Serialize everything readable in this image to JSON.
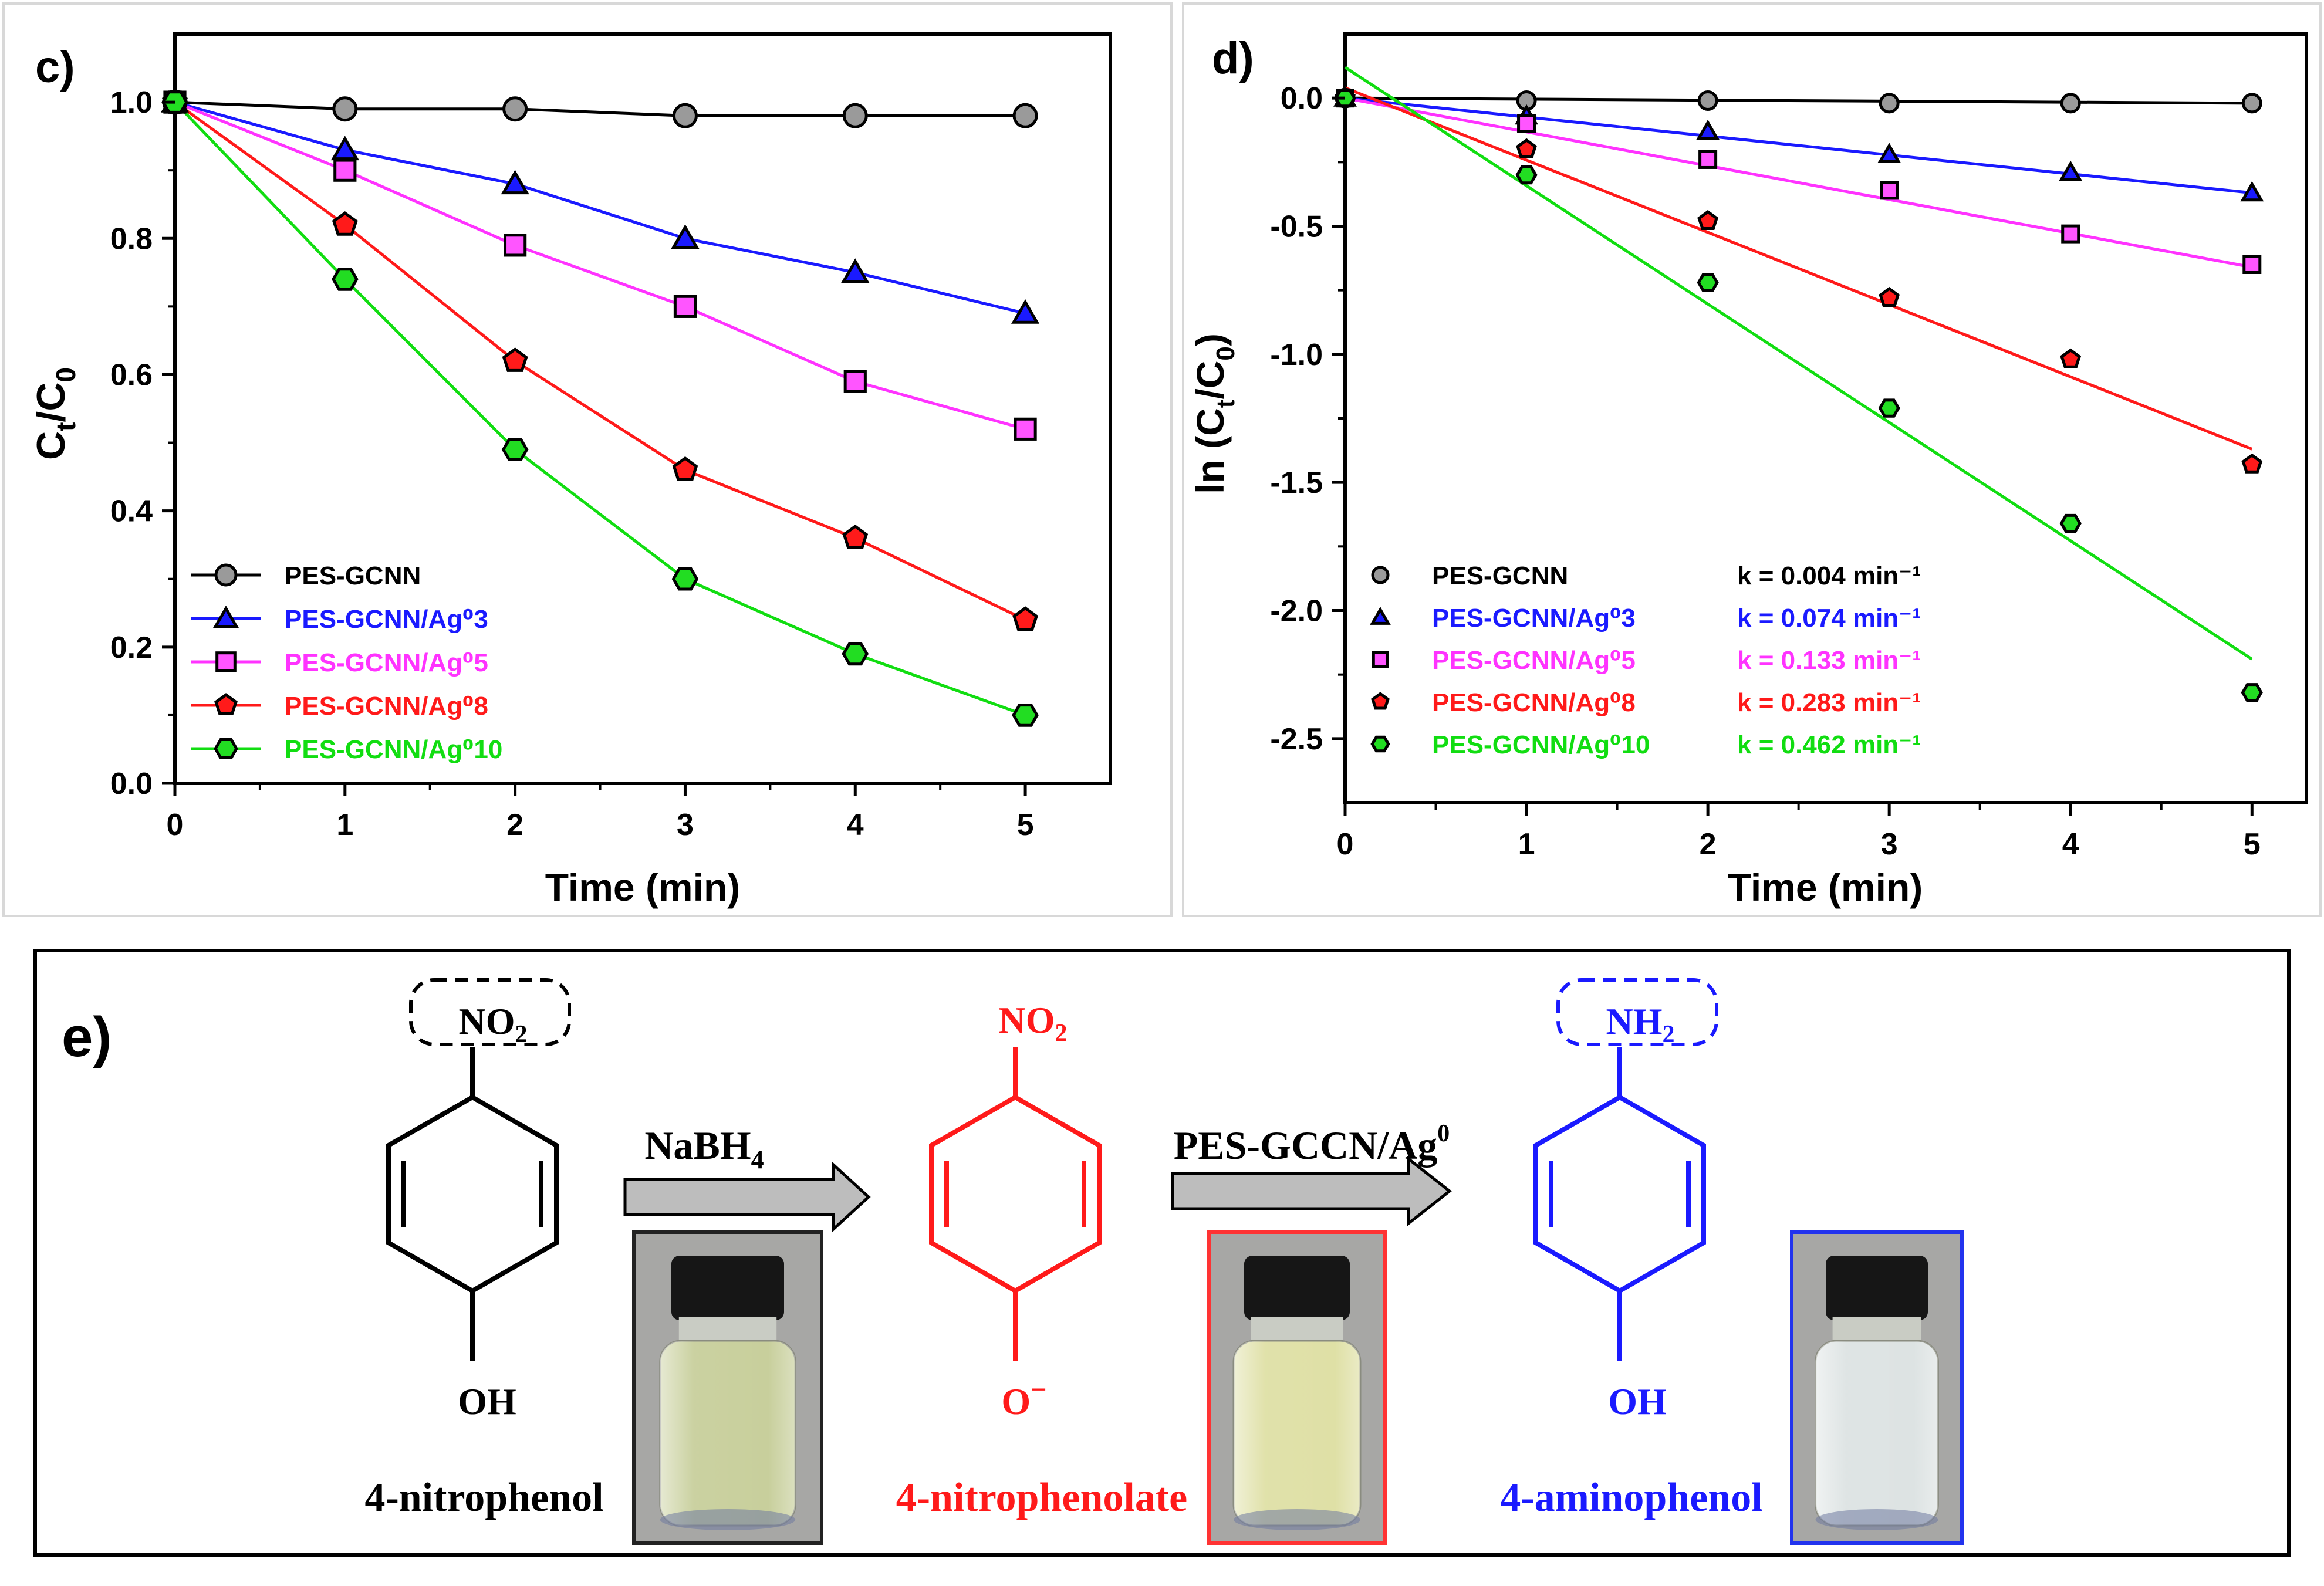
{
  "chart_data": [
    {
      "panel_label": "c)",
      "type": "line",
      "xlabel": "Time (min)",
      "ylabel_main": "C",
      "ylabel_sub1": "t",
      "ylabel_mid": "/C",
      "ylabel_sub2": "0",
      "xlim": [
        0,
        5.5
      ],
      "ylim": [
        0,
        1.1
      ],
      "xticks": [
        "0",
        "1",
        "2",
        "3",
        "4",
        "5"
      ],
      "yticks": [
        "0.0",
        "0.2",
        "0.4",
        "0.6",
        "0.8",
        "1.0"
      ],
      "x": [
        0,
        1,
        2,
        3,
        4,
        5
      ],
      "legend_position": "bottom-left",
      "series": [
        {
          "name": "PES-GCNN",
          "color": "#000000",
          "marker_fill": "#9a9a9a",
          "marker": "circle",
          "values": [
            1.0,
            0.99,
            0.99,
            0.98,
            0.98,
            0.98
          ]
        },
        {
          "name": "PES-GCNN/Ag⁰3",
          "color": "#1a1aff",
          "marker_fill": "#1a1aff",
          "marker": "triangle",
          "values": [
            1.0,
            0.93,
            0.88,
            0.8,
            0.75,
            0.69
          ]
        },
        {
          "name": "PES-GCNN/Ag⁰5",
          "color": "#ff33ff",
          "marker_fill": "#ff55ff",
          "marker": "square",
          "values": [
            1.0,
            0.9,
            0.79,
            0.7,
            0.59,
            0.52
          ]
        },
        {
          "name": "PES-GCNN/Ag⁰8",
          "color": "#ff1a1a",
          "marker_fill": "#ff1a1a",
          "marker": "pentagon",
          "values": [
            1.0,
            0.82,
            0.62,
            0.46,
            0.36,
            0.24
          ]
        },
        {
          "name": "PES-GCNN/Ag⁰10",
          "color": "#11dd11",
          "marker_fill": "#22dd22",
          "marker": "hexagon",
          "values": [
            1.0,
            0.74,
            0.49,
            0.3,
            0.19,
            0.1
          ]
        }
      ]
    },
    {
      "panel_label": "d)",
      "type": "scatter",
      "xlabel": "Time (min)",
      "ylabel_main": "ln (C",
      "ylabel_sub1": "t",
      "ylabel_mid": "/C",
      "ylabel_sub2": "0",
      "ylabel_end": ")",
      "xlim": [
        0,
        5.3
      ],
      "ylim": [
        -2.75,
        0.25
      ],
      "xticks": [
        "0",
        "1",
        "2",
        "3",
        "4",
        "5"
      ],
      "yticks": [
        "0.0",
        "-0.5",
        "-1.0",
        "-1.5",
        "-2.0",
        "-2.5"
      ],
      "x": [
        0,
        1,
        2,
        3,
        4,
        5
      ],
      "legend_position": "bottom-left",
      "series": [
        {
          "name": "PES-GCNN",
          "k_label": "k = 0.004 min⁻¹",
          "color": "#000000",
          "marker_fill": "#9a9a9a",
          "marker": "circle",
          "values": [
            0.0,
            -0.01,
            -0.01,
            -0.02,
            -0.02,
            -0.02
          ],
          "fit": [
            0.0,
            -0.02
          ]
        },
        {
          "name": "PES-GCNN/Ag⁰3",
          "k_label": "k = 0.074 min⁻¹",
          "color": "#1a1aff",
          "marker_fill": "#1a1aff",
          "marker": "triangle",
          "values": [
            0.0,
            -0.07,
            -0.13,
            -0.22,
            -0.29,
            -0.37
          ],
          "fit": [
            0.0,
            -0.37
          ]
        },
        {
          "name": "PES-GCNN/Ag⁰5",
          "k_label": "k = 0.133  min⁻¹",
          "color": "#ff33ff",
          "marker_fill": "#ff55ff",
          "marker": "square",
          "values": [
            0.0,
            -0.1,
            -0.24,
            -0.36,
            -0.53,
            -0.65
          ],
          "fit": [
            0.0,
            -0.66
          ]
        },
        {
          "name": "PES-GCNN/Ag⁰8",
          "k_label": "k = 0.283  min⁻¹",
          "color": "#ff1a1a",
          "marker_fill": "#ff1a1a",
          "marker": "pentagon",
          "values": [
            0.0,
            -0.2,
            -0.48,
            -0.78,
            -1.02,
            -1.43
          ],
          "fit": [
            0.04,
            -1.37
          ]
        },
        {
          "name": "PES-GCNN/Ag⁰10",
          "k_label": "k = 0.462 min⁻¹",
          "color": "#11dd11",
          "marker_fill": "#22dd22",
          "marker": "hexagon",
          "values": [
            0.0,
            -0.3,
            -0.72,
            -1.21,
            -1.66,
            -2.32
          ],
          "fit": [
            0.12,
            -2.19
          ]
        }
      ]
    }
  ],
  "scheme": {
    "panel_label": "e)",
    "molecules": [
      {
        "top_group": "NO",
        "top_sub": "2",
        "bottom_group": "OH",
        "name": "4-nitrophenol",
        "color": "#000000"
      },
      {
        "top_group": "NO",
        "top_sub": "2",
        "bottom_group": "O",
        "bottom_charge": "−",
        "name": "4-nitrophenolate",
        "color": "#ff1a1a"
      },
      {
        "top_group": "NH",
        "top_sub": "2",
        "bottom_group": "OH",
        "name": "4-aminophenol",
        "color": "#1a1aff"
      }
    ],
    "arrows": [
      {
        "label": "NaBH",
        "label_sub": "4"
      },
      {
        "label": "PES-GCCN/Ag",
        "label_sup": "0"
      }
    ],
    "vials": [
      {
        "frame_color": "#222222",
        "liquid_color": "#c8cf9c"
      },
      {
        "frame_color": "#ff3333",
        "liquid_color": "#dfe0a6"
      },
      {
        "frame_color": "#2233ee",
        "liquid_color": "#dde3e3"
      }
    ]
  }
}
